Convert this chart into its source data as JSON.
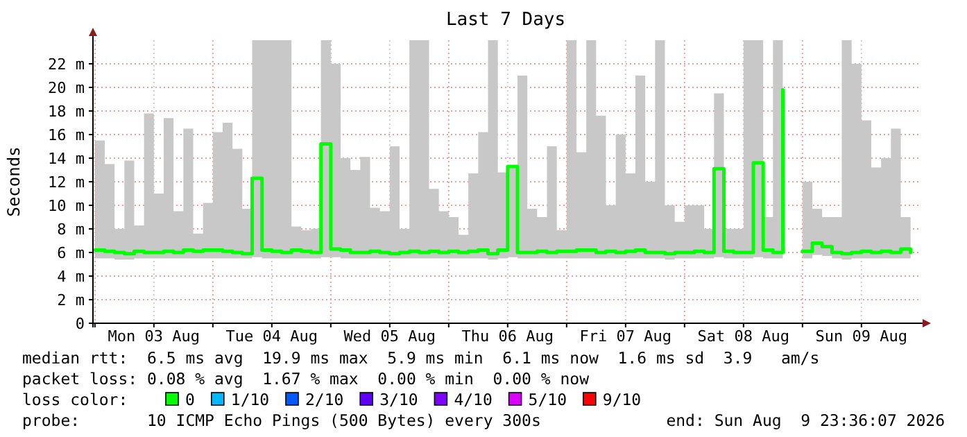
{
  "chart_data": {
    "type": "step",
    "title": "Last 7 Days",
    "ylabel": "Seconds",
    "xlim": [
      "2026-08-02T23:36",
      "2026-08-09T23:36"
    ],
    "xticks": [
      {
        "value": "2026-08-03T00:00",
        "label": null
      },
      {
        "value": "2026-08-03T12:00",
        "label": "Mon 03 Aug"
      },
      {
        "value": "2026-08-04T00:00",
        "label": null
      },
      {
        "value": "2026-08-04T12:00",
        "label": "Tue 04 Aug"
      },
      {
        "value": "2026-08-05T00:00",
        "label": null
      },
      {
        "value": "2026-08-05T12:00",
        "label": "Wed 05 Aug"
      },
      {
        "value": "2026-08-06T00:00",
        "label": null
      },
      {
        "value": "2026-08-06T12:00",
        "label": "Thu 06 Aug"
      },
      {
        "value": "2026-08-07T00:00",
        "label": null
      },
      {
        "value": "2026-08-07T12:00",
        "label": "Fri 07 Aug"
      },
      {
        "value": "2026-08-08T00:00",
        "label": null
      },
      {
        "value": "2026-08-08T12:00",
        "label": "Sat 08 Aug"
      },
      {
        "value": "2026-08-09T00:00",
        "label": null
      },
      {
        "value": "2026-08-09T12:00",
        "label": "Sun 09 Aug"
      }
    ],
    "ylim": [
      0,
      24
    ],
    "yticks": [
      0,
      {
        "value": 2,
        "label": "2 m"
      },
      {
        "value": 4,
        "label": "4 m"
      },
      {
        "value": 6,
        "label": "6 m"
      },
      {
        "value": 8,
        "label": "8 m"
      },
      {
        "value": 10,
        "label": "10 m"
      },
      {
        "value": 12,
        "label": "12 m"
      },
      {
        "value": 14,
        "label": "14 m"
      },
      {
        "value": 16,
        "label": "16 m"
      },
      {
        "value": 18,
        "label": "18 m"
      },
      {
        "value": 20,
        "label": "20 m"
      },
      {
        "value": 22,
        "label": "22 m"
      }
    ],
    "grid": true,
    "x": [
      "2026-08-03T00:00",
      "2026-08-03T02:00",
      "2026-08-03T04:00",
      "2026-08-03T06:00",
      "2026-08-03T08:00",
      "2026-08-03T10:00",
      "2026-08-03T12:00",
      "2026-08-03T14:00",
      "2026-08-03T16:00",
      "2026-08-03T18:00",
      "2026-08-03T20:00",
      "2026-08-03T22:00",
      "2026-08-04T00:00",
      "2026-08-04T02:00",
      "2026-08-04T04:00",
      "2026-08-04T06:00",
      "2026-08-04T08:00",
      "2026-08-04T10:00",
      "2026-08-04T12:00",
      "2026-08-04T14:00",
      "2026-08-04T16:00",
      "2026-08-04T18:00",
      "2026-08-04T20:00",
      "2026-08-04T22:00",
      "2026-08-05T00:00",
      "2026-08-05T02:00",
      "2026-08-05T04:00",
      "2026-08-05T06:00",
      "2026-08-05T08:00",
      "2026-08-05T10:00",
      "2026-08-05T12:00",
      "2026-08-05T14:00",
      "2026-08-05T16:00",
      "2026-08-05T18:00",
      "2026-08-05T20:00",
      "2026-08-05T22:00",
      "2026-08-06T00:00",
      "2026-08-06T02:00",
      "2026-08-06T04:00",
      "2026-08-06T06:00",
      "2026-08-06T08:00",
      "2026-08-06T10:00",
      "2026-08-06T12:00",
      "2026-08-06T14:00",
      "2026-08-06T16:00",
      "2026-08-06T18:00",
      "2026-08-06T20:00",
      "2026-08-06T22:00",
      "2026-08-07T00:00",
      "2026-08-07T02:00",
      "2026-08-07T04:00",
      "2026-08-07T06:00",
      "2026-08-07T08:00",
      "2026-08-07T10:00",
      "2026-08-07T12:00",
      "2026-08-07T14:00",
      "2026-08-07T16:00",
      "2026-08-07T18:00",
      "2026-08-07T20:00",
      "2026-08-07T22:00",
      "2026-08-08T00:00",
      "2026-08-08T02:00",
      "2026-08-08T04:00",
      "2026-08-08T06:00",
      "2026-08-08T08:00",
      "2026-08-08T10:00",
      "2026-08-08T12:00",
      "2026-08-08T14:00",
      "2026-08-08T16:00",
      "2026-08-08T18:00",
      "2026-08-08T20:00",
      "2026-08-08T22:00",
      "2026-08-09T00:00",
      "2026-08-09T02:00",
      "2026-08-09T04:00",
      "2026-08-09T06:00",
      "2026-08-09T08:00",
      "2026-08-09T10:00",
      "2026-08-09T12:00",
      "2026-08-09T14:00",
      "2026-08-09T16:00",
      "2026-08-09T18:00",
      "2026-08-09T20:00",
      "2026-08-09T22:00"
    ],
    "series": [
      {
        "color": "#00ff00",
        "values": [
          6.2,
          6.1,
          6.0,
          5.9,
          6.1,
          6.0,
          6.0,
          6.1,
          6.0,
          6.2,
          6.1,
          6.2,
          6.2,
          6.1,
          6.0,
          5.9,
          12.3,
          6.2,
          6.1,
          6.0,
          6.2,
          6.1,
          6.0,
          15.2,
          6.3,
          6.2,
          6.0,
          6.0,
          6.1,
          6.0,
          5.9,
          6.0,
          6.1,
          6.0,
          6.1,
          6.0,
          6.1,
          6.0,
          6.1,
          6.2,
          5.9,
          6.2,
          13.3,
          6.0,
          6.0,
          6.1,
          6.0,
          6.1,
          6.1,
          6.2,
          6.2,
          6.0,
          6.1,
          6.0,
          6.1,
          6.2,
          6.0,
          6.0,
          5.9,
          6.0,
          6.0,
          6.1,
          6.0,
          13.1,
          6.1,
          6.0,
          6.0,
          13.6,
          6.2,
          6.0,
          19.8,
          null,
          6.1,
          6.8,
          6.5,
          6.0,
          5.9,
          6.0,
          6.1,
          6.0,
          6.1,
          6.0,
          6.3,
          6.0
        ],
        "lower": [
          5.5,
          5.5,
          5.4,
          5.4,
          5.5,
          5.5,
          5.5,
          5.5,
          5.5,
          5.5,
          5.5,
          5.5,
          5.5,
          5.5,
          5.5,
          5.5,
          5.6,
          5.5,
          5.5,
          5.5,
          5.5,
          5.5,
          5.5,
          5.6,
          5.6,
          5.5,
          5.5,
          5.5,
          5.5,
          5.5,
          5.5,
          5.5,
          5.5,
          5.5,
          5.5,
          5.5,
          5.5,
          5.5,
          5.5,
          5.5,
          5.4,
          5.5,
          5.6,
          5.5,
          5.5,
          5.5,
          5.5,
          5.5,
          5.5,
          5.5,
          5.5,
          5.5,
          5.5,
          5.5,
          5.5,
          5.5,
          5.5,
          5.5,
          5.4,
          5.5,
          5.5,
          5.5,
          5.5,
          5.6,
          5.5,
          5.5,
          5.5,
          5.6,
          5.5,
          5.5,
          5.6,
          null,
          5.5,
          5.8,
          5.7,
          5.5,
          5.4,
          5.5,
          5.5,
          5.5,
          5.5,
          5.5,
          5.5,
          5.5
        ],
        "upper": [
          15.5,
          13.5,
          8.0,
          13.8,
          8.3,
          17.8,
          11.0,
          17.4,
          9.5,
          16.5,
          7.6,
          10.2,
          16.2,
          17.0,
          14.8,
          9.7,
          24,
          24,
          24,
          24,
          8.2,
          7.9,
          8.0,
          24,
          22,
          14,
          13,
          14.1,
          9.8,
          9.5,
          15,
          8.0,
          24,
          24,
          11.4,
          9.5,
          9.0,
          7.5,
          12.7,
          16.2,
          24,
          12.8,
          13.3,
          21,
          9.7,
          9.0,
          15,
          7.9,
          24,
          14.5,
          24,
          17.6,
          10,
          16,
          12.7,
          21,
          12,
          24,
          10,
          8.6,
          10,
          10,
          8,
          19.5,
          8,
          8,
          24,
          24,
          9,
          24,
          24,
          null,
          12,
          9.7,
          9,
          9,
          24,
          22,
          17.2,
          13.2,
          14,
          16.5,
          9,
          9.6
        ]
      }
    ],
    "annotations": [
      "median rtt:  6.5 ms avg  19.9 ms max  5.9 ms min  6.1 ms now  1.6 ms sd  3.9   am/s",
      "packet loss: 0.08 % avg  1.67 % max  0.00 % min  0.00 % now",
      "loss color:",
      "0",
      "1/10",
      "2/10",
      "3/10",
      "4/10",
      "5/10",
      "9/10",
      "probe:       10 ICMP Echo Pings (500 Bytes) every 300s",
      "end: Sun Aug  9 23:36:07 2026"
    ]
  }
}
